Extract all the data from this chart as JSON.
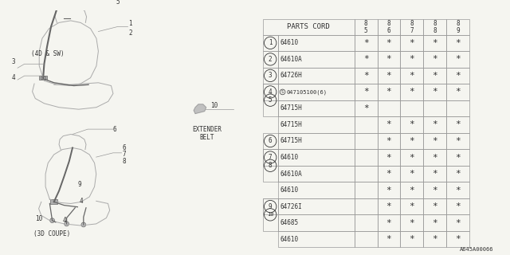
{
  "bg_color": "#f5f5f0",
  "col_header": "PARTS CORD",
  "year_cols": [
    "85",
    "86",
    "87",
    "88",
    "89"
  ],
  "rows": [
    {
      "num": "1",
      "sub": false,
      "code": "64610",
      "stars": [
        true,
        true,
        true,
        true,
        true
      ]
    },
    {
      "num": "2",
      "sub": false,
      "code": "64610A",
      "stars": [
        true,
        true,
        true,
        true,
        true
      ]
    },
    {
      "num": "3",
      "sub": false,
      "code": "64726H",
      "stars": [
        true,
        true,
        true,
        true,
        true
      ]
    },
    {
      "num": "4",
      "sub": false,
      "code": "047105100(6)",
      "stars": [
        true,
        true,
        true,
        true,
        true
      ],
      "s_prefix": true
    },
    {
      "num": "5",
      "sub": false,
      "code": "64715H",
      "stars": [
        true,
        false,
        false,
        false,
        false
      ]
    },
    {
      "num": "5",
      "sub": true,
      "code": "64715H",
      "stars": [
        false,
        true,
        true,
        true,
        true
      ]
    },
    {
      "num": "6",
      "sub": false,
      "code": "64715H",
      "stars": [
        false,
        true,
        true,
        true,
        true
      ]
    },
    {
      "num": "7",
      "sub": false,
      "code": "64610",
      "stars": [
        false,
        true,
        true,
        true,
        true
      ]
    },
    {
      "num": "8",
      "sub": false,
      "code": "64610A",
      "stars": [
        false,
        true,
        true,
        true,
        true
      ]
    },
    {
      "num": "8",
      "sub": true,
      "code": "64610",
      "stars": [
        false,
        true,
        true,
        true,
        true
      ]
    },
    {
      "num": "9",
      "sub": false,
      "code": "64726I",
      "stars": [
        false,
        true,
        true,
        true,
        true
      ]
    },
    {
      "num": "10",
      "sub": false,
      "code": "64685",
      "stars": [
        false,
        true,
        true,
        true,
        true
      ]
    },
    {
      "num": "10",
      "sub": true,
      "code": "64610",
      "stars": [
        false,
        true,
        true,
        true,
        true
      ]
    }
  ],
  "footer": "A645A00066",
  "line_color": "#999999",
  "text_color": "#333333",
  "diagram_label_4d": "(4D & SW)",
  "diagram_label_3d": "(3D COUPE)",
  "extender_label": "EXTENDER\nBELT",
  "sf": 5.5,
  "tf": 6.5,
  "seat_color": "#aaaaaa",
  "belt_color": "#555555"
}
